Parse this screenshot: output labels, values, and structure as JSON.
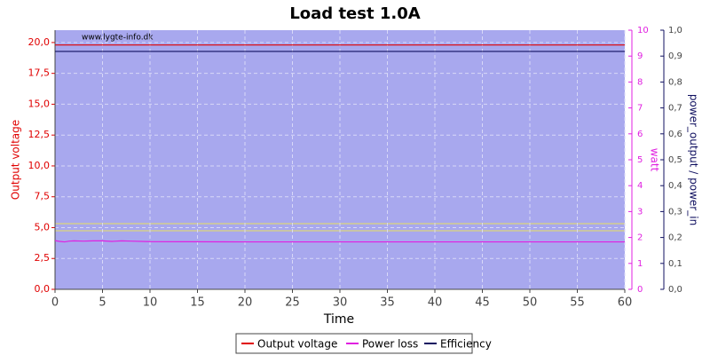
{
  "chart_data": {
    "type": "line",
    "title": "Load test 1.0A",
    "watermark": "www.lygte-info.dk",
    "x_label": "Time",
    "y_label": "Output voltage",
    "y2_label": "watt",
    "y3_label": "power_output / power_in",
    "x": [
      0,
      0.5,
      1,
      1.5,
      2,
      3,
      4,
      5,
      6,
      7,
      8,
      10,
      20,
      30,
      40,
      50,
      60
    ],
    "series": [
      {
        "name": "Output voltage",
        "color": "#e00000",
        "axis": "y",
        "values": [
          19.8,
          19.8,
          19.8,
          19.8,
          19.8,
          19.8,
          19.8,
          19.8,
          19.8,
          19.8,
          19.8,
          19.8,
          19.8,
          19.8,
          19.8,
          19.8,
          19.8
        ]
      },
      {
        "name": "Power loss",
        "color": "#e020e0",
        "axis": "y2",
        "values": [
          1.88,
          1.85,
          1.83,
          1.86,
          1.87,
          1.86,
          1.87,
          1.87,
          1.85,
          1.87,
          1.86,
          1.84,
          1.83,
          1.83,
          1.83,
          1.83,
          1.83
        ]
      },
      {
        "name": "Efficiency",
        "color": "#101060",
        "axis": "y3",
        "values": [
          0.918,
          0.918,
          0.918,
          0.918,
          0.918,
          0.918,
          0.918,
          0.918,
          0.918,
          0.918,
          0.918,
          0.918,
          0.918,
          0.918,
          0.918,
          0.918,
          0.918
        ]
      }
    ],
    "xlim": [
      0,
      60
    ],
    "xticks": [
      0,
      5,
      10,
      15,
      20,
      25,
      30,
      35,
      40,
      45,
      50,
      55,
      60
    ],
    "ylim": [
      0,
      21
    ],
    "yticks": [
      {
        "value": 0,
        "label": "0,0"
      },
      {
        "value": 2.5,
        "label": "2,5"
      },
      {
        "value": 5,
        "label": "5,0"
      },
      {
        "value": 7.5,
        "label": "7,5"
      },
      {
        "value": 10,
        "label": "10,0"
      },
      {
        "value": 12.5,
        "label": "12,5"
      },
      {
        "value": 15,
        "label": "15,0"
      },
      {
        "value": 17.5,
        "label": "17,5"
      },
      {
        "value": 20,
        "label": "20,0"
      }
    ],
    "y2lim": [
      0,
      10
    ],
    "y2ticks": [
      0,
      1,
      2,
      3,
      4,
      5,
      6,
      7,
      8,
      9,
      10
    ],
    "y3lim": [
      0,
      1
    ],
    "y3ticks": [
      {
        "value": 0,
        "label": "0,0"
      },
      {
        "value": 0.1,
        "label": "0,1"
      },
      {
        "value": 0.2,
        "label": "0,2"
      },
      {
        "value": 0.3,
        "label": "0,3"
      },
      {
        "value": 0.4,
        "label": "0,4"
      },
      {
        "value": 0.5,
        "label": "0,5"
      },
      {
        "value": 0.6,
        "label": "0,6"
      },
      {
        "value": 0.7,
        "label": "0,7"
      },
      {
        "value": 0.8,
        "label": "0,8"
      },
      {
        "value": 0.9,
        "label": "0,9"
      },
      {
        "value": 1,
        "label": "1,0"
      }
    ],
    "grid": true,
    "legend": "bottom"
  }
}
